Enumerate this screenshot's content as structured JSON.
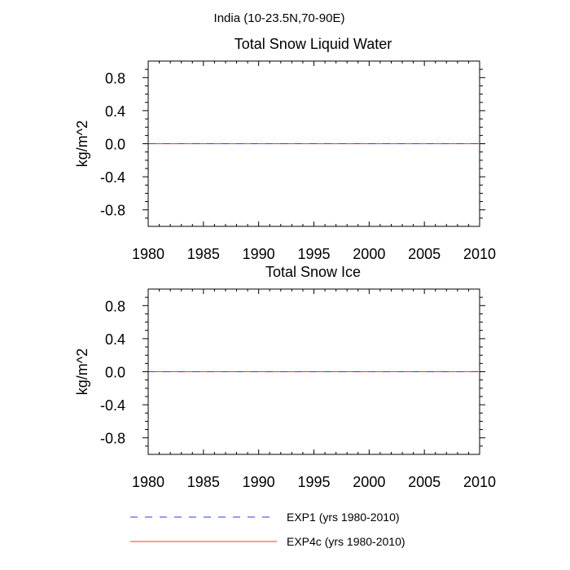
{
  "figure_title": "India (10-23.5N,70-90E)",
  "chart_data": [
    {
      "type": "line",
      "title": "Total Snow Liquid Water",
      "xlabel": "",
      "ylabel": "kg/m^2",
      "xlim": [
        1980,
        2010
      ],
      "ylim": [
        -1.0,
        1.0
      ],
      "xticks": [
        "1980",
        "1985",
        "1990",
        "1995",
        "2000",
        "2005",
        "2010"
      ],
      "yticks": [
        "0.8",
        "0.4",
        "0.0",
        "-0.4",
        "-0.8"
      ],
      "series": [
        {
          "name": "EXP1 (yrs 1980-2010)",
          "x": [
            1980,
            2010
          ],
          "values": [
            0.0,
            0.0
          ]
        },
        {
          "name": "EXP4c (yrs 1980-2010)",
          "x": [
            1980,
            2010
          ],
          "values": [
            0.0,
            0.0
          ]
        }
      ]
    },
    {
      "type": "line",
      "title": "Total Snow Ice",
      "xlabel": "",
      "ylabel": "kg/m^2",
      "xlim": [
        1980,
        2010
      ],
      "ylim": [
        -1.0,
        1.0
      ],
      "xticks": [
        "1980",
        "1985",
        "1990",
        "1995",
        "2000",
        "2005",
        "2010"
      ],
      "yticks": [
        "0.8",
        "0.4",
        "0.0",
        "-0.4",
        "-0.8"
      ],
      "series": [
        {
          "name": "EXP1 (yrs 1980-2010)",
          "x": [
            1980,
            2010
          ],
          "values": [
            0.0,
            0.0
          ]
        },
        {
          "name": "EXP4c (yrs 1980-2010)",
          "x": [
            1980,
            2010
          ],
          "values": [
            0.0,
            0.0
          ]
        }
      ]
    }
  ],
  "legend": {
    "placement": "bottom",
    "entries": [
      {
        "label": "EXP1 (yrs 1980-2010)",
        "color": "#3333ff",
        "style": "dashed"
      },
      {
        "label": "EXP4c (yrs 1980-2010)",
        "color": "#ff3333",
        "style": "solid"
      }
    ]
  },
  "colors": {
    "exp1": "#3333ff",
    "exp4c": "#ff3333",
    "axis": "#000000"
  }
}
